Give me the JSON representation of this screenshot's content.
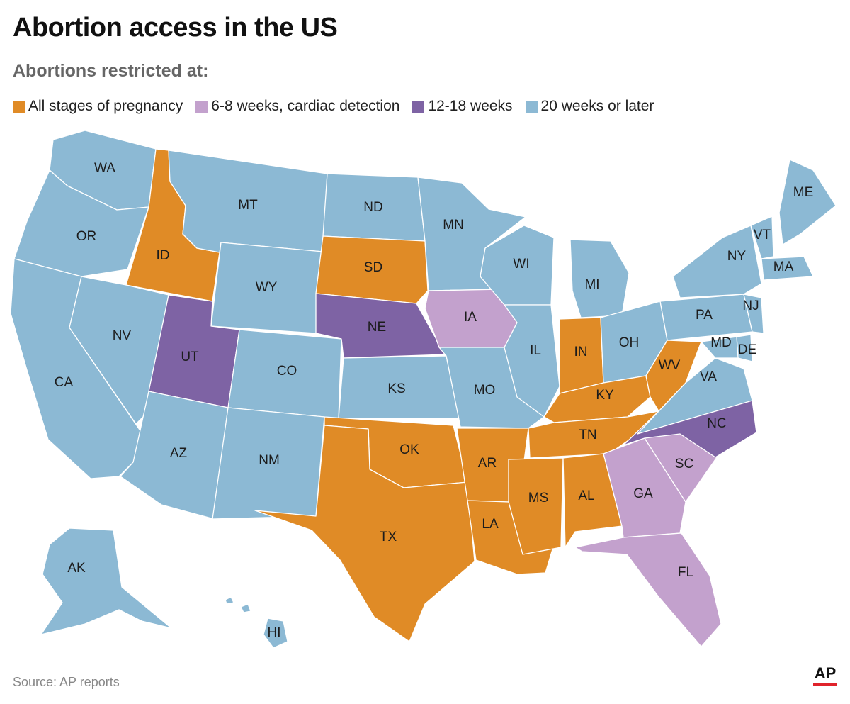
{
  "title": "Abortion access in the US",
  "subtitle": "Abortions restricted at:",
  "legend": [
    {
      "label": "All stages of pregnancy",
      "color": "#e08b26"
    },
    {
      "label": "6-8 weeks, cardiac detection",
      "color": "#c3a1cd"
    },
    {
      "label": "12-18 weeks",
      "color": "#7e63a4"
    },
    {
      "label": "20 weeks or later",
      "color": "#8cb9d4"
    }
  ],
  "states": [
    {
      "abbr": "WA",
      "category": 3
    },
    {
      "abbr": "OR",
      "category": 3
    },
    {
      "abbr": "CA",
      "category": 3
    },
    {
      "abbr": "ID",
      "category": 0
    },
    {
      "abbr": "NV",
      "category": 3
    },
    {
      "abbr": "MT",
      "category": 3
    },
    {
      "abbr": "WY",
      "category": 3
    },
    {
      "abbr": "UT",
      "category": 2
    },
    {
      "abbr": "AZ",
      "category": 3
    },
    {
      "abbr": "CO",
      "category": 3
    },
    {
      "abbr": "NM",
      "category": 3
    },
    {
      "abbr": "ND",
      "category": 3
    },
    {
      "abbr": "SD",
      "category": 0
    },
    {
      "abbr": "NE",
      "category": 2
    },
    {
      "abbr": "KS",
      "category": 3
    },
    {
      "abbr": "OK",
      "category": 0
    },
    {
      "abbr": "TX",
      "category": 0
    },
    {
      "abbr": "MN",
      "category": 3
    },
    {
      "abbr": "IA",
      "category": 1
    },
    {
      "abbr": "MO",
      "category": 3
    },
    {
      "abbr": "AR",
      "category": 0
    },
    {
      "abbr": "LA",
      "category": 0
    },
    {
      "abbr": "WI",
      "category": 3
    },
    {
      "abbr": "IL",
      "category": 3
    },
    {
      "abbr": "MI",
      "category": 3
    },
    {
      "abbr": "IN",
      "category": 0
    },
    {
      "abbr": "OH",
      "category": 3
    },
    {
      "abbr": "KY",
      "category": 0
    },
    {
      "abbr": "TN",
      "category": 0
    },
    {
      "abbr": "MS",
      "category": 0
    },
    {
      "abbr": "AL",
      "category": 0
    },
    {
      "abbr": "GA",
      "category": 1
    },
    {
      "abbr": "FL",
      "category": 1
    },
    {
      "abbr": "SC",
      "category": 1
    },
    {
      "abbr": "NC",
      "category": 2
    },
    {
      "abbr": "VA",
      "category": 3
    },
    {
      "abbr": "WV",
      "category": 0
    },
    {
      "abbr": "PA",
      "category": 3
    },
    {
      "abbr": "NY",
      "category": 3
    },
    {
      "abbr": "NJ",
      "category": 3
    },
    {
      "abbr": "DE",
      "category": 3
    },
    {
      "abbr": "MD",
      "category": 3
    },
    {
      "abbr": "VT",
      "category": 3
    },
    {
      "abbr": "MA",
      "category": 3
    },
    {
      "abbr": "ME",
      "category": 3
    },
    {
      "abbr": "AK",
      "category": 3
    },
    {
      "abbr": "HI",
      "category": 3
    }
  ],
  "source": "Source: AP reports",
  "logo": "AP"
}
